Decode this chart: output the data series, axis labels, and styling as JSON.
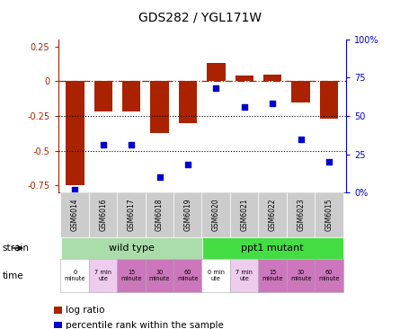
{
  "title": "GDS282 / YGL171W",
  "samples": [
    "GSM6014",
    "GSM6016",
    "GSM6017",
    "GSM6018",
    "GSM6019",
    "GSM6020",
    "GSM6021",
    "GSM6022",
    "GSM6023",
    "GSM6015"
  ],
  "log_ratio": [
    -0.75,
    -0.22,
    -0.22,
    -0.37,
    -0.3,
    0.13,
    0.04,
    0.05,
    -0.15,
    -0.27
  ],
  "percentile": [
    2,
    31,
    31,
    10,
    18,
    68,
    56,
    58,
    35,
    20
  ],
  "bar_color": "#aa2200",
  "dot_color": "#0000cc",
  "ylim_left": [
    -0.8,
    0.3
  ],
  "ylim_right": [
    0,
    100
  ],
  "yticks_left": [
    -0.75,
    -0.5,
    -0.25,
    0,
    0.25
  ],
  "yticks_right": [
    0,
    25,
    50,
    75,
    100
  ],
  "hline_y": 0,
  "dotline_y": [
    -0.25,
    -0.5
  ],
  "strain_labels": [
    "wild type",
    "ppt1 mutant"
  ],
  "strain_color_wt": "#aaddaa",
  "strain_color_mut": "#44dd44",
  "time_labels": [
    "0\nminute",
    "7 min\nute",
    "15\nminute",
    "30\nminute",
    "60\nminute",
    "0 min\nute",
    "7 min\nute",
    "15\nminute",
    "30\nminute",
    "60\nminute"
  ],
  "time_colors": [
    "#ffffff",
    "#eeccee",
    "#cc77bb",
    "#cc77bb",
    "#cc77bb",
    "#ffffff",
    "#eeccee",
    "#cc77bb",
    "#cc77bb",
    "#cc77bb"
  ],
  "legend_log_ratio": "log ratio",
  "legend_percentile": "percentile rank within the sample",
  "bg_color": "#ffffff",
  "sample_box_color": "#cccccc",
  "label_strain": "strain",
  "label_time": "time"
}
